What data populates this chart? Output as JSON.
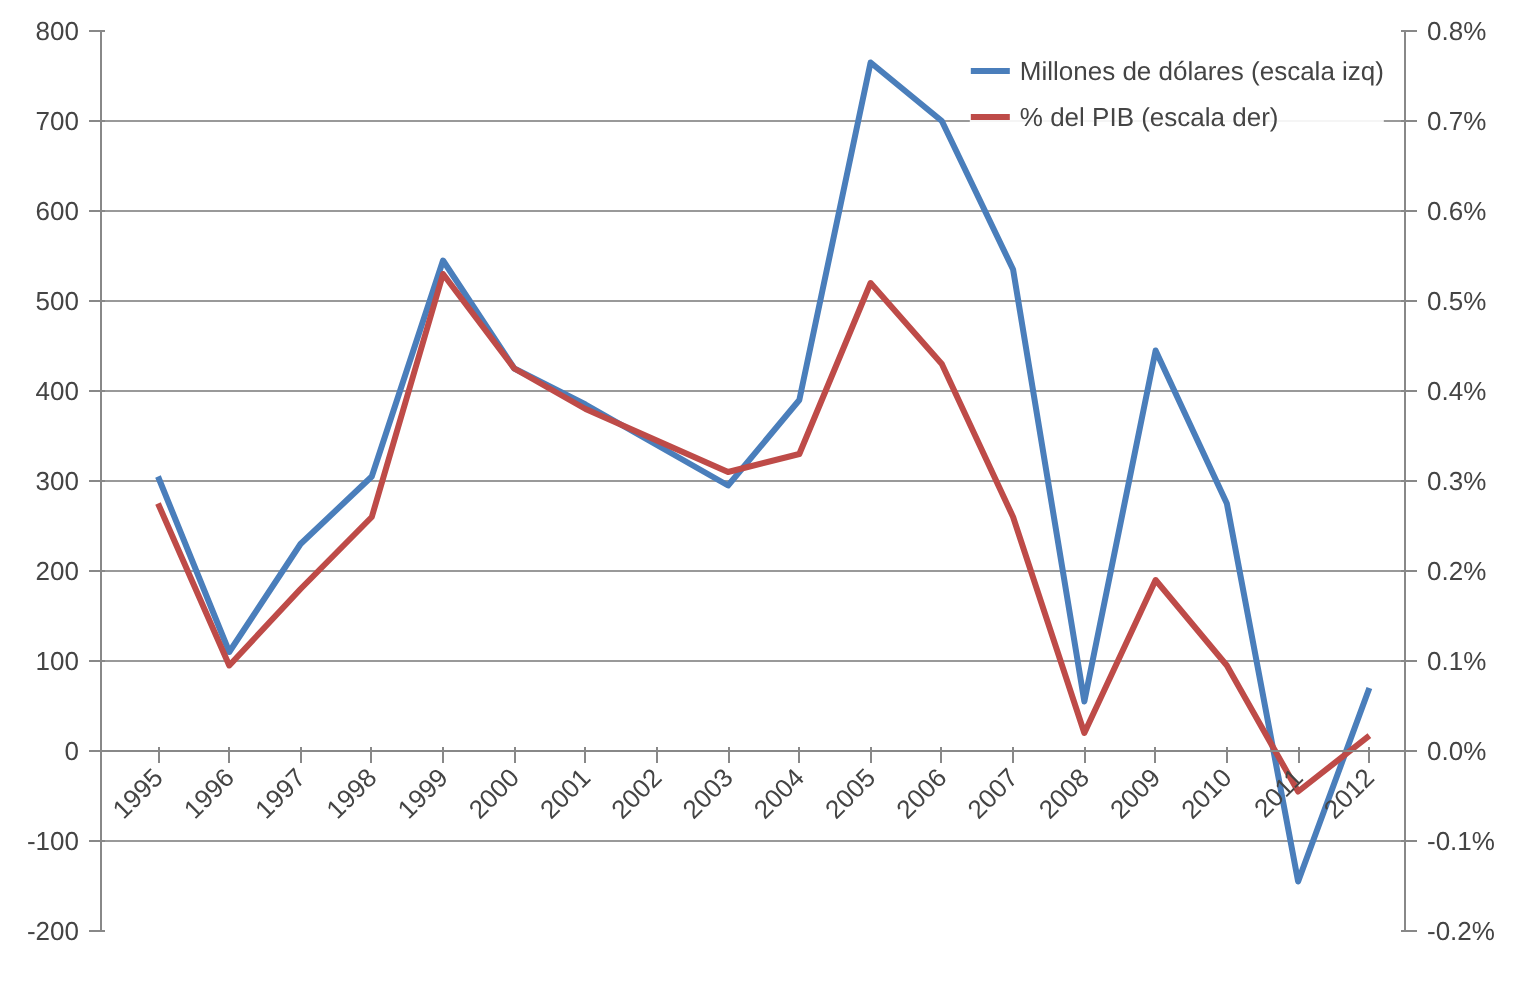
{
  "chart_data": {
    "type": "line",
    "categories": [
      "1995",
      "1996",
      "1997",
      "1998",
      "1999",
      "2000",
      "2001",
      "2002",
      "2003",
      "2004",
      "2005",
      "2006",
      "2007",
      "2008",
      "2009",
      "2010",
      "2011",
      "2012"
    ],
    "series": [
      {
        "name": "Millones de dólares (escala izq)",
        "color": "#4a7ebb",
        "values": [
          305,
          110,
          230,
          305,
          545,
          425,
          385,
          340,
          295,
          390,
          765,
          700,
          535,
          55,
          445,
          275,
          -145,
          70
        ]
      },
      {
        "name": "% del PIB (escala der)",
        "color": "#be4b48",
        "axis": "y2",
        "values": [
          0.275,
          0.095,
          0.18,
          0.26,
          0.53,
          0.425,
          0.38,
          0.345,
          0.31,
          0.33,
          0.52,
          0.43,
          0.26,
          0.02,
          0.19,
          0.095,
          -0.045,
          0.017
        ]
      }
    ],
    "ylim": [
      -200,
      800
    ],
    "yticks": [
      -200,
      -100,
      0,
      100,
      200,
      300,
      400,
      500,
      600,
      700,
      800
    ],
    "y2lim": [
      -0.2,
      0.8
    ],
    "y2ticks": [
      {
        "value": -0.2,
        "label": "-0.2%"
      },
      {
        "value": -0.1,
        "label": "-0.1%"
      },
      {
        "value": 0,
        "label": "0.0%"
      },
      {
        "value": 0.1,
        "label": "0.1%"
      },
      {
        "value": 0.2,
        "label": "0.2%"
      },
      {
        "value": 0.3,
        "label": "0.3%"
      },
      {
        "value": 0.4,
        "label": "0.4%"
      },
      {
        "value": 0.5,
        "label": "0.5%"
      },
      {
        "value": 0.6,
        "label": "0.6%"
      },
      {
        "value": 0.7,
        "label": "0.7%"
      },
      {
        "value": 0.8,
        "label": "0.8%"
      }
    ],
    "grid": "y",
    "legend": "top right",
    "line_style": "solid"
  }
}
